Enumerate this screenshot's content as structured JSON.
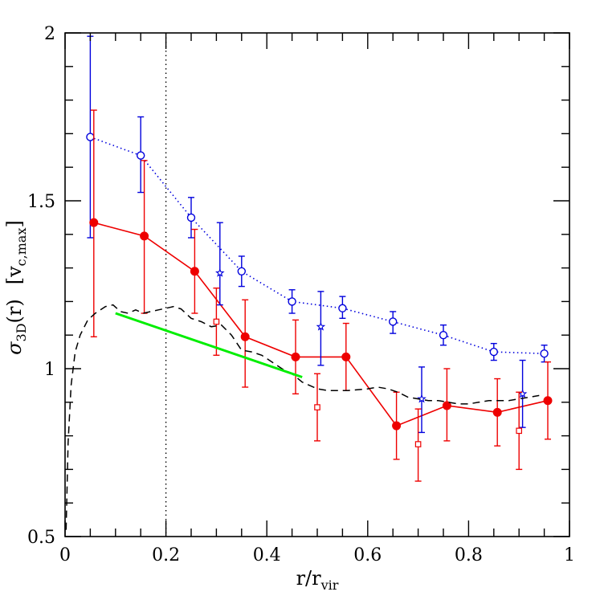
{
  "chart_data": {
    "type": "scatter",
    "title": "",
    "xlabel": {
      "main": "r/r",
      "sub": "vir"
    },
    "ylabel": {
      "sigma": "σ",
      "sigma_sub": "3D",
      "arg": "(r)",
      "unit_open": "[v",
      "unit_sub": "c,max",
      "unit_close": "]"
    },
    "xlim": [
      0,
      1
    ],
    "ylim": [
      0.5,
      2
    ],
    "xticks": [
      0,
      0.2,
      0.4,
      0.6,
      0.8,
      1
    ],
    "xtick_labels": [
      "0",
      "0.2",
      "0.4",
      "0.6",
      "0.8",
      "1"
    ],
    "yticks": [
      0.5,
      1,
      1.5,
      2
    ],
    "ytick_labels": [
      "0.5",
      "1",
      "1.5",
      "2"
    ],
    "vertical_line_x": 0.2,
    "grid": false,
    "series": [
      {
        "style": "blue-open-circles-dotted",
        "color": "#0000dd",
        "x": [
          0.05,
          0.15,
          0.25,
          0.35,
          0.45,
          0.55,
          0.65,
          0.75,
          0.85,
          0.95
        ],
        "y": [
          1.69,
          1.635,
          1.45,
          1.29,
          1.2,
          1.18,
          1.14,
          1.1,
          1.05,
          1.045
        ],
        "err_low": [
          0.3,
          0.11,
          0.06,
          0.045,
          0.035,
          0.03,
          0.035,
          0.03,
          0.025,
          0.025
        ],
        "err_high": [
          0.3,
          0.115,
          0.06,
          0.045,
          0.035,
          0.035,
          0.03,
          0.03,
          0.025,
          0.025
        ]
      },
      {
        "style": "red-filled-circles-solid",
        "color": "#ee0000",
        "x": [
          0.057,
          0.157,
          0.257,
          0.357,
          0.457,
          0.557,
          0.657,
          0.757,
          0.857,
          0.957
        ],
        "y": [
          1.435,
          1.395,
          1.29,
          1.095,
          1.035,
          1.035,
          0.83,
          0.89,
          0.87,
          0.905
        ],
        "err_low": [
          0.34,
          0.23,
          0.125,
          0.15,
          0.11,
          0.1,
          0.1,
          0.105,
          0.1,
          0.115
        ],
        "err_high": [
          0.335,
          0.225,
          0.125,
          0.11,
          0.11,
          0.1,
          0.1,
          0.11,
          0.1,
          0.115
        ]
      },
      {
        "style": "blue-stars",
        "color": "#0000dd",
        "x": [
          0.307,
          0.507,
          0.707,
          0.907
        ],
        "y": [
          1.285,
          1.125,
          0.91,
          0.925
        ],
        "err_low": [
          0.095,
          0.115,
          0.1,
          0.1
        ],
        "err_high": [
          0.15,
          0.105,
          0.095,
          0.1
        ]
      },
      {
        "style": "red-open-squares",
        "color": "#ee0000",
        "x": [
          0.3,
          0.5,
          0.7,
          0.9
        ],
        "y": [
          1.14,
          0.885,
          0.775,
          0.815
        ],
        "err_low": [
          0.1,
          0.1,
          0.11,
          0.115
        ],
        "err_high": [
          0.1,
          0.1,
          0.105,
          0.115
        ]
      },
      {
        "style": "black-dashed",
        "color": "#000000",
        "x": [
          0.002,
          0.006,
          0.012,
          0.02,
          0.03,
          0.045,
          0.06,
          0.08,
          0.095,
          0.11,
          0.125,
          0.14,
          0.155,
          0.17,
          0.185,
          0.2,
          0.215,
          0.23,
          0.25,
          0.27,
          0.29,
          0.31,
          0.33,
          0.35,
          0.37,
          0.39,
          0.41,
          0.43,
          0.45,
          0.47,
          0.5,
          0.52,
          0.54,
          0.56,
          0.6,
          0.62,
          0.64,
          0.66,
          0.68,
          0.7,
          0.72,
          0.74,
          0.76,
          0.78,
          0.8,
          0.82,
          0.84,
          0.86,
          0.88,
          0.9,
          0.92,
          0.94
        ],
        "y": [
          0.52,
          0.78,
          0.95,
          1.05,
          1.1,
          1.145,
          1.165,
          1.185,
          1.19,
          1.17,
          1.165,
          1.175,
          1.165,
          1.17,
          1.175,
          1.18,
          1.185,
          1.178,
          1.15,
          1.14,
          1.125,
          1.13,
          1.1,
          1.055,
          1.05,
          1.04,
          1.02,
          1.0,
          0.985,
          0.96,
          0.94,
          0.935,
          0.935,
          0.935,
          0.94,
          0.945,
          0.94,
          0.93,
          0.915,
          0.91,
          0.905,
          0.905,
          0.9,
          0.895,
          0.895,
          0.9,
          0.905,
          0.905,
          0.905,
          0.91,
          0.915,
          0.92
        ]
      },
      {
        "style": "green-solid",
        "color": "#00ee00",
        "x": [
          0.1,
          0.47
        ],
        "y": [
          1.165,
          0.975
        ]
      }
    ]
  }
}
